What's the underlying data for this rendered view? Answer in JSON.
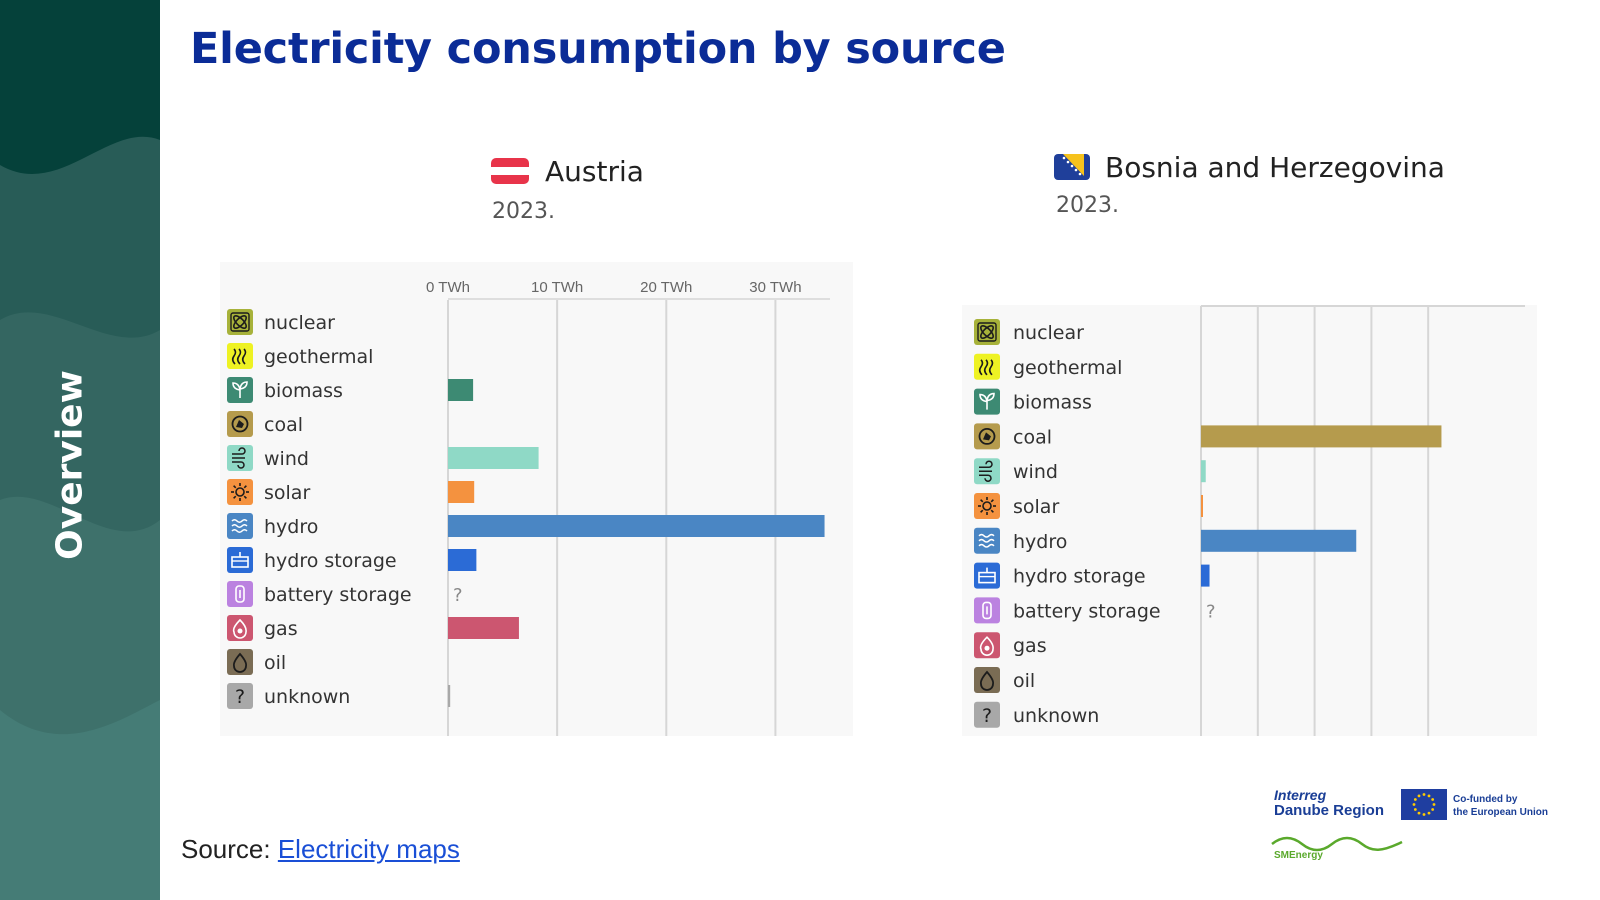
{
  "title": "Electricity consumption by source",
  "sidebar_label": "Overview",
  "source": {
    "prefix": "Source:",
    "link_text": "Electricity maps"
  },
  "logos": {
    "interreg_line1": "Interreg",
    "interreg_line2": "Danube Region",
    "eu_line1": "Co-funded by",
    "eu_line2": "the European Union",
    "project": "SMEnergy"
  },
  "colors": {
    "title": "#0b2c97",
    "sidebar_dark": "#05413a",
    "link": "#1a4fd6"
  },
  "chart_data": [
    {
      "type": "bar",
      "orientation": "horizontal",
      "title": "Austria",
      "subtitle": "2023.",
      "flag": "austria-flag",
      "xlim": [
        0,
        35
      ],
      "ticks": [
        0,
        10,
        20,
        30
      ],
      "tick_labels": [
        "0 TWh",
        "10 TWh",
        "20 TWh",
        "30 TWh"
      ],
      "grid": true,
      "categories": [
        "nuclear",
        "geothermal",
        "biomass",
        "coal",
        "wind",
        "solar",
        "hydro",
        "hydro storage",
        "battery storage",
        "gas",
        "oil",
        "unknown"
      ],
      "values": [
        0,
        0,
        2.3,
        0,
        8.3,
        2.4,
        34.5,
        2.6,
        null,
        6.5,
        0,
        0.2
      ],
      "missing_marker": "?",
      "colors": [
        "#a7b23a",
        "#eef223",
        "#3d8a73",
        "#b59b4d",
        "#8fd9c6",
        "#f4923f",
        "#4a86c4",
        "#2b6bd6",
        "#bb82e0",
        "#cc5670",
        "#7a6c54",
        "#a8a8a8"
      ]
    },
    {
      "type": "bar",
      "orientation": "horizontal",
      "title": "Bosnia and Herzegovina",
      "subtitle": "2023.",
      "flag": "bosnia-flag",
      "xlim": [
        0,
        15
      ],
      "ticks": [
        0,
        3,
        6,
        9,
        12
      ],
      "tick_labels": [],
      "grid": true,
      "categories": [
        "nuclear",
        "geothermal",
        "biomass",
        "coal",
        "wind",
        "solar",
        "hydro",
        "hydro storage",
        "battery storage",
        "gas",
        "oil",
        "unknown"
      ],
      "values": [
        0,
        0,
        0,
        12.7,
        0.25,
        0.05,
        8.2,
        0.45,
        null,
        0,
        0,
        0
      ],
      "missing_marker": "?",
      "colors": [
        "#a7b23a",
        "#eef223",
        "#3d8a73",
        "#b59b4d",
        "#8fd9c6",
        "#f4923f",
        "#4a86c4",
        "#2b6bd6",
        "#bb82e0",
        "#cc5670",
        "#7a6c54",
        "#a8a8a8"
      ]
    }
  ]
}
